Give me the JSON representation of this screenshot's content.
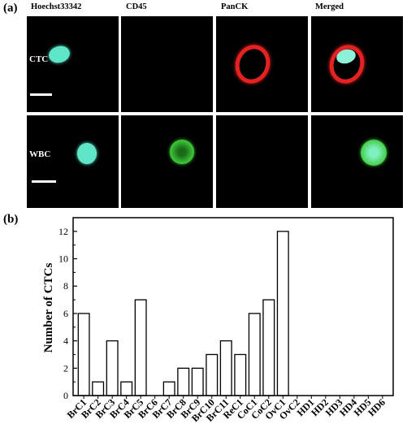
{
  "panel_a": {
    "label": "(a)",
    "columns": [
      "Hoechst33342",
      "CD45",
      "PanCK",
      "Merged"
    ],
    "rows": [
      "CTC",
      "WBC"
    ],
    "colors": {
      "hoechst": "#5fe6c9",
      "cd45": "#3ecb3a",
      "panck": "#e52222",
      "background": "#000000"
    }
  },
  "panel_b": {
    "label": "(b)"
  },
  "chart_data": {
    "type": "bar",
    "categories": [
      "BrC1",
      "BrC2",
      "BrC3",
      "BrC4",
      "BrC5",
      "BrC6",
      "BrC7",
      "BrC8",
      "BrC9",
      "BrC10",
      "BrC11",
      "ReC1",
      "CoC1",
      "CoC2",
      "OvC1",
      "OvC2",
      "HD1",
      "HD2",
      "HD3",
      "HD4",
      "HD5",
      "HD6"
    ],
    "values": [
      6,
      1,
      4,
      1,
      7,
      0,
      1,
      2,
      2,
      3,
      4,
      3,
      6,
      7,
      12,
      0,
      0,
      0,
      0,
      0,
      0,
      0
    ],
    "ylabel": "Number of CTCs",
    "xlabel": "",
    "ylim": [
      0,
      13
    ],
    "yticks": [
      0,
      2,
      4,
      6,
      8,
      10,
      12
    ],
    "grid": false
  }
}
